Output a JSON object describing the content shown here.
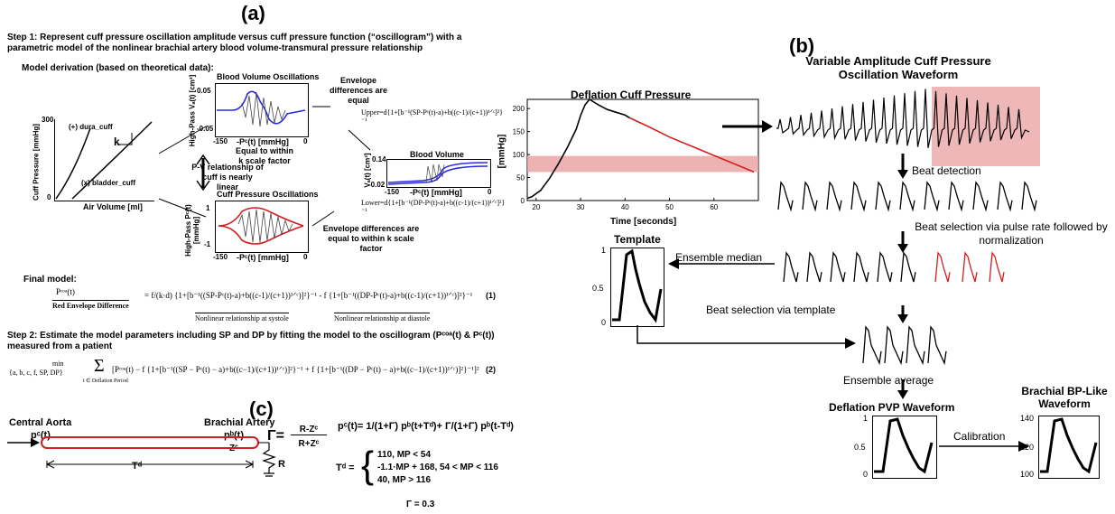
{
  "panel_a": {
    "label": "(a)",
    "step1": "Step 1: Represent cuff pressure oscillation amplitude versus cuff pressure function (“oscillogram”) with a parametric model of the nonlinear brachial artery blood volume-transmural pressure relationship",
    "model_derivation": "Model derivation (based on theoretical data):",
    "pv_ylabel": "Cuff Pressure [mmHg]",
    "pv_xlabel": "Air Volume  [ml]",
    "pv_tick_300": "300",
    "pv_tick_0": "0",
    "dura_label": "(+) dura_cuff",
    "bladder_label": "(x) bladder_cuff",
    "k_label": "k",
    "bv_osc_title": "Blood Volume Oscillations",
    "bv_osc_ylabel": "High-Pass Vₐ(t) [cm³]",
    "bv_tick_top": "0.05",
    "bv_tick_bot": "-0.05",
    "bv_x_left": "-150",
    "bv_x_right": "0",
    "bv_xlabel": "-Pᶜ(t) [mmHg]",
    "cp_osc_title": "Cuff Pressure Oscillations",
    "cp_osc_ylabel": "High-Pass Pᶜ(t) [mmHg]",
    "cp_tick_top": "1",
    "cp_tick_bot": "-1",
    "cp_x_left": "-150",
    "cp_x_right": "0",
    "cp_xlabel": "-Pᶜ(t) [mmHg]",
    "pv_rel": "P-V relationship of cuff is nearly linear",
    "equal_k": "Equal to within k scale factor",
    "env_equal": "Envelope differences are equal",
    "env_equal_k": "Envelope differences are equal to within k scale factor",
    "bv_title": "Blood Volume",
    "bv_ylabel": "Vₐ(t) [cm³]",
    "bv_top": "0.14",
    "bv_bot": "-0.02",
    "bv_xl": "-150",
    "bv_xr": "0",
    "bv_x2": "-Pᶜ(t) [mmHg]",
    "upper_eq": "Upper=d{1+[b⁻¹(SP-Pᶜ(t)-a)+b((c-1)/(c+1))¹ᐟᶜ]²}⁻¹",
    "lower_eq": "Lower=d{1+[b⁻¹(DP-Pᶜ(t)-a)+b((c-1)/(c+1))¹ᐟᶜ]²}⁻¹",
    "final_model": "Final model:",
    "eq1_lhs": "Pᶜᵒᵃ(t)",
    "eq1_lhs_label": "Red Envelope Difference",
    "eq1_body": "= f/(k·d) {1+[b⁻¹((SP-Pᶜ(t)-a)+b((c-1)/(c+1))¹ᐟᶜ)]²}⁻¹ - f {1+[b⁻¹((DP-Pᶜ(t)-a)+b((c-1)/(c+1))¹ᐟᶜ)]²}⁻¹",
    "eq1_under_sys": "Nonlinear relationship at systole",
    "eq1_under_dia": "Nonlinear relationship at diastole",
    "eq1_num": "(1)",
    "step2": "Step 2: Estimate the model parameters including SP and DP by fitting the model to the oscillogram (Pᶜᵒᵃ(t) & Pᶜ(t)) measured from a patient",
    "eq2_min": "min",
    "eq2_args": "{a, b, c, f, SP, DP}",
    "eq2_sum_sub": "t ∈ Deflation Period",
    "eq2_body": "[Pᶜᵒᵃ(t) − f {1+[b⁻¹((SP − Pᶜ(t) − a)+b((c−1)/(c+1))¹ᐟᶜ)]²}⁻¹ + f {1+[b⁻¹((DP − Pᶜ(t) − a)+b((c−1)/(c+1))¹ᐟᶜ)]²}⁻¹]²",
    "eq2_num": "(2)"
  },
  "deflation_chart": {
    "title": "Deflation Cuff Pressure",
    "ylabel": "[mmHg]",
    "xlabel": "Time [seconds]"
  },
  "chart_data": {
    "type": "line",
    "title": "Deflation Cuff Pressure",
    "xlabel": "Time [seconds]",
    "ylabel": "[mmHg]",
    "xlim": [
      18,
      70
    ],
    "ylim": [
      0,
      220
    ],
    "xticks": [
      20,
      30,
      40,
      50,
      60
    ],
    "yticks": [
      0,
      50,
      100,
      150,
      200
    ],
    "shaded_band_y": [
      62,
      97
    ],
    "series": [
      {
        "x": [
          18,
          19,
          21,
          23,
          25,
          27,
          29,
          30,
          31,
          32,
          34,
          36,
          38,
          40,
          41,
          45,
          50,
          55,
          60,
          65,
          69
        ],
        "y": [
          5,
          8,
          22,
          48,
          80,
          115,
          155,
          185,
          208,
          220,
          208,
          198,
          192,
          186,
          180,
          162,
          138,
          118,
          98,
          78,
          62
        ]
      }
    ]
  },
  "panel_b": {
    "label": "(b)",
    "top_title": "Variable Amplitude Cuff Pressure Oscillation Waveform",
    "beat_detection": "Beat detection",
    "beat_selection_rate": "Beat selection via pulse rate followed by normalization",
    "template": "Template",
    "ensemble_median": "Ensemble median",
    "beat_selection_template": "Beat selection via template",
    "ensemble_average": "Ensemble average",
    "deflation_pvp": "Deflation PVP Waveform",
    "calibration": "Calibration",
    "brachial_bp": "Brachial BP-Like Waveform",
    "tmpl_t1": "1",
    "tmpl_t05": "0.5",
    "tmpl_t0": "0",
    "pvp_t1": "1",
    "pvp_t05": "0.5",
    "pvp_t0": "0",
    "bp_t140": "140",
    "bp_t120": "120",
    "bp_t100": "100"
  },
  "panel_c": {
    "label": "(c)",
    "central_aorta": "Central Aorta",
    "pc": "pᶜ(t)",
    "brachial_artery": "Brachial Artery",
    "pb": "pᵇ(t)",
    "zc": "Zᶜ",
    "td": "Tᵈ",
    "r": "R",
    "gamma_eq_lhs": "Γ=",
    "gamma_num": "R-Zᶜ",
    "gamma_den": "R+Zᶜ",
    "pc_eq": "pᶜ(t)= 1/(1+Γ) pᵇ(t+Tᵈ)+ Γ/(1+Γ) pᵇ(t-Tᵈ)",
    "td_eq": "Tᵈ =",
    "td_case1": "110, MP < 54",
    "td_case2": "-1.1·MP + 168, 54 < MP < 116",
    "td_case3": "40, MP > 116",
    "gamma_val": "Γ = 0.3"
  },
  "colors": {
    "red": "#d21f1f",
    "blue": "#2a2ae0",
    "band": "#e8a0a0"
  }
}
